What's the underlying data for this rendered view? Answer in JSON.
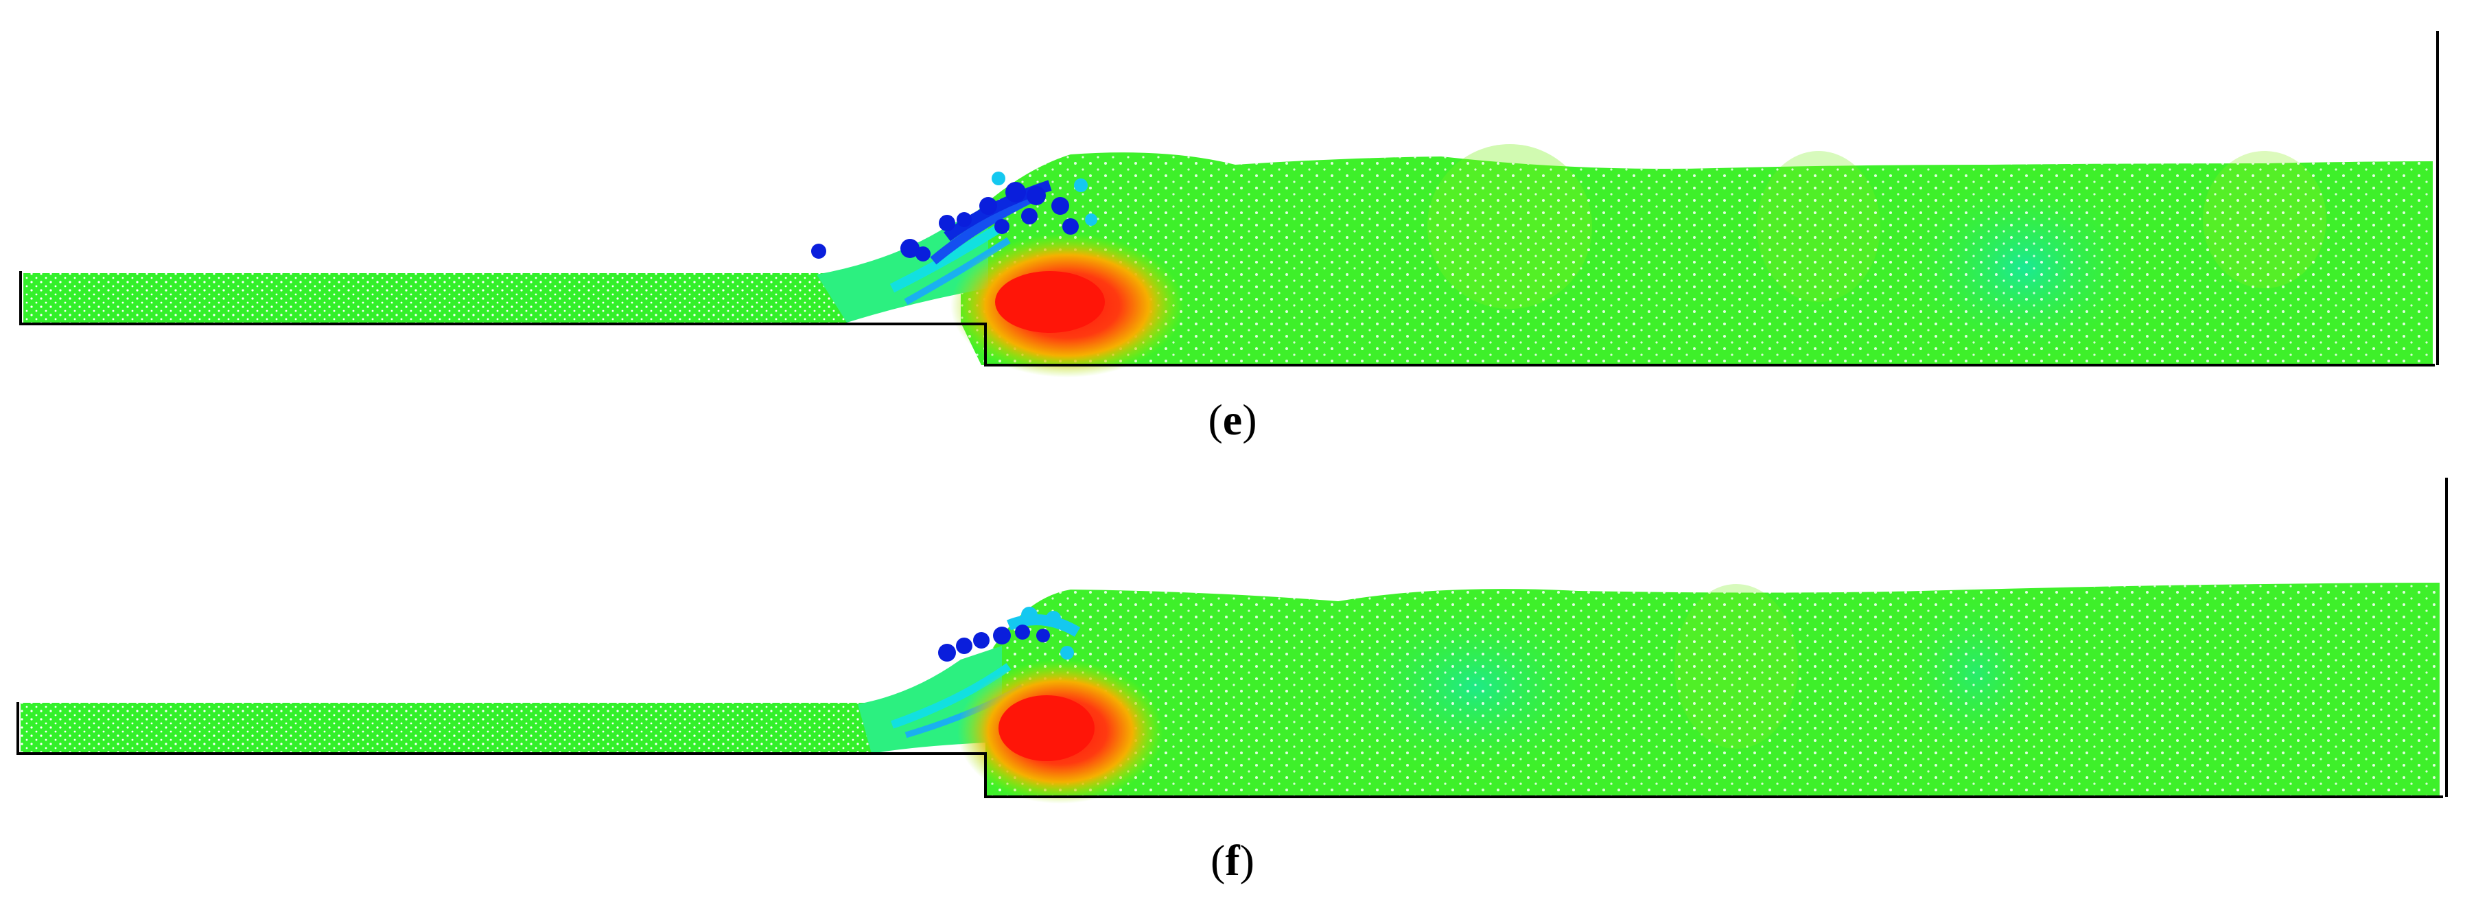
{
  "panels": [
    {
      "id": "e",
      "caption_open": "(",
      "caption_letter": "e",
      "caption_close": ")"
    },
    {
      "id": "f",
      "caption_open": "(",
      "caption_letter": "f",
      "caption_close": ")"
    }
  ],
  "colors": {
    "background": "#ffffff",
    "walls": "#000000",
    "upstream_flow": "#30f030",
    "downstream_flow": "#2fe830",
    "high_value": "#ff1a10",
    "mid_value": "#f0c000",
    "low_value": "#0a1edc",
    "cyan_value": "#1ee6e6"
  }
}
